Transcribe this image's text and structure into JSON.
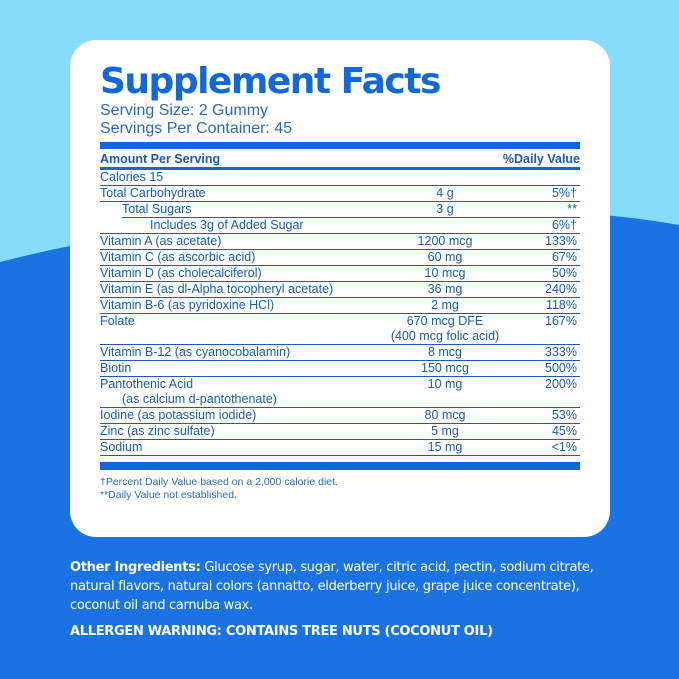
{
  "colors": {
    "light_bg": "#86dcfb",
    "dark_bg": "#1a73e0",
    "accent": "#1268d8"
  },
  "title": "Supplement Facts",
  "serving_size": "Serving Size: 2 Gummy",
  "servings_per_container": "Servings Per Container: 45",
  "header": {
    "amount": "Amount Per Serving",
    "dv": "%Daily Value"
  },
  "calories": "Calories  15",
  "rows": [
    {
      "name": "Total Carbohydrate",
      "amount": "4 g",
      "dv": "5%†"
    },
    {
      "name": "Total Sugars",
      "amount": "3 g",
      "dv": "**"
    },
    {
      "name": "Includes 3g of Added Sugar",
      "amount": "",
      "dv": "6%†"
    },
    {
      "name": "Vitamin A  (as acetate)",
      "amount": "1200 mcg",
      "dv": "133%"
    },
    {
      "name": "Vitamin C (as ascorbic acid)",
      "amount": "60 mg",
      "dv": "67%"
    },
    {
      "name": "Vitamin D (as cholecalciferol)",
      "amount": "10 mcg",
      "dv": "50%"
    },
    {
      "name": "Vitamin E (as dl-Alpha tocopheryl acetate)",
      "amount": "36 mg",
      "dv": "240%"
    },
    {
      "name": "Vitamin B-6 (as pyridoxine HCl)",
      "amount": "2 mg",
      "dv": "118%"
    },
    {
      "name": "Folate",
      "amount": "670 mcg DFE",
      "amount2": "(400 mcg folic acid)",
      "dv": "167%"
    },
    {
      "name": "Vitamin B-12 (as cyanocobalamin)",
      "amount": "8 mcg",
      "dv": "333%"
    },
    {
      "name": "Biotin",
      "amount": "150 mcg",
      "dv": "500%"
    },
    {
      "name": "Pantothenic Acid",
      "name2": "(as calcium d-pantothenate)",
      "amount": "10 mg",
      "dv": "200%"
    },
    {
      "name": "Iodine (as potassium iodide)",
      "amount": "80 mcg",
      "dv": "53%"
    },
    {
      "name": "Zinc (as zinc sulfate)",
      "amount": "5 mg",
      "dv": "45%"
    },
    {
      "name": "Sodium",
      "amount": "15 mg",
      "dv": "<1%"
    }
  ],
  "footnotes": [
    "†Percent Daily Value based on a 2,000 calorie diet.",
    "**Daily Value not established."
  ],
  "other_ingredients": {
    "label": "Other Ingredients:",
    "text": " Glucose syrup, sugar, water, citric acid, pectin, sodium citrate, natural flavors, natural colors (annatto, elderberry juice, grape juice concentrate), coconut oil and carnuba wax."
  },
  "allergen": "ALLERGEN WARNING: CONTAINS TREE NUTS (COCONUT OIL)"
}
